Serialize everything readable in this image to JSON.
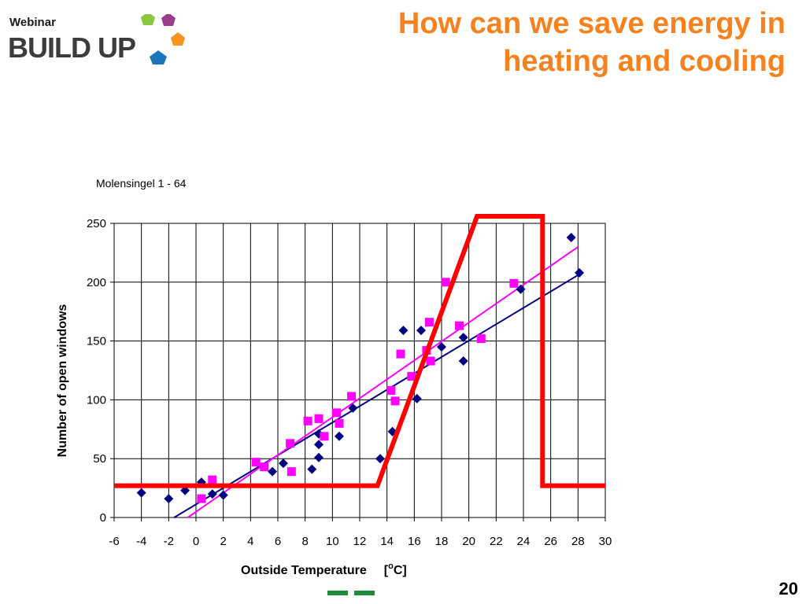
{
  "header": {
    "webinar_label": "Webinar",
    "brand": "BUILD UP",
    "title_line1": "How can we save energy in",
    "title_line2": "heating and cooling"
  },
  "footer": {
    "page_number": "20"
  },
  "colors": {
    "title": "#f5821f",
    "series_a": "#000080",
    "series_b": "#ff00ff",
    "overlay": "#ff0000",
    "logo_green": "#8dc63f",
    "logo_purple": "#9b3d8c",
    "logo_orange": "#f7941d",
    "logo_blue": "#1b75bc"
  },
  "chart_data": {
    "type": "scatter",
    "title": "Molensingel 1 - 64",
    "xlabel": "Outside Temperature",
    "xunit_prefix": "[",
    "xunit_sup": "o",
    "xunit_suffix": "C]",
    "ylabel": "Number of open windows",
    "xlim": [
      -6,
      30
    ],
    "ylim": [
      0,
      250
    ],
    "xticks": [
      -6,
      -4,
      -2,
      0,
      2,
      4,
      6,
      8,
      10,
      12,
      14,
      16,
      18,
      20,
      22,
      24,
      26,
      28,
      30
    ],
    "yticks": [
      0,
      50,
      100,
      150,
      200,
      250
    ],
    "grid": true,
    "series": [
      {
        "marker": "diamond",
        "color": "#000080",
        "points": [
          [
            -4,
            21
          ],
          [
            -2,
            16
          ],
          [
            -0.8,
            23
          ],
          [
            0.4,
            30
          ],
          [
            1.2,
            20
          ],
          [
            2,
            19
          ],
          [
            5.6,
            39
          ],
          [
            6.4,
            46
          ],
          [
            8.5,
            41
          ],
          [
            9,
            51
          ],
          [
            9,
            62
          ],
          [
            9,
            71
          ],
          [
            10.5,
            69
          ],
          [
            11.5,
            93
          ],
          [
            13.5,
            50
          ],
          [
            14.4,
            73
          ],
          [
            15.2,
            159
          ],
          [
            16.2,
            101
          ],
          [
            16.5,
            159
          ],
          [
            18,
            145
          ],
          [
            19.6,
            133
          ],
          [
            19.6,
            153
          ],
          [
            23.8,
            194
          ],
          [
            27.5,
            238
          ],
          [
            28.1,
            208
          ]
        ]
      },
      {
        "marker": "square",
        "color": "#ff00ff",
        "points": [
          [
            0.4,
            16
          ],
          [
            1.2,
            32
          ],
          [
            4.4,
            47
          ],
          [
            5,
            43
          ],
          [
            6.9,
            63
          ],
          [
            7,
            39
          ],
          [
            8.2,
            82
          ],
          [
            9,
            84
          ],
          [
            9.4,
            69
          ],
          [
            10.3,
            89
          ],
          [
            10.5,
            80
          ],
          [
            11.4,
            103
          ],
          [
            14.3,
            108
          ],
          [
            14.6,
            99
          ],
          [
            15,
            139
          ],
          [
            15.8,
            120
          ],
          [
            16.9,
            142
          ],
          [
            17.1,
            166
          ],
          [
            17.2,
            133
          ],
          [
            18.3,
            200
          ],
          [
            19.3,
            163
          ],
          [
            20.9,
            152
          ],
          [
            23.3,
            199
          ]
        ]
      }
    ],
    "trendlines": [
      {
        "color": "#000080",
        "from": [
          -1.6,
          0
        ],
        "to": [
          28,
          206
        ]
      },
      {
        "color": "#ff00ff",
        "from": [
          -0.6,
          0
        ],
        "to": [
          28,
          230
        ]
      }
    ],
    "overlay": {
      "color": "#ff0000",
      "points": [
        [
          -6,
          27
        ],
        [
          13.3,
          27
        ],
        [
          20.6,
          256
        ],
        [
          25.4,
          256
        ],
        [
          25.4,
          27
        ],
        [
          30,
          27
        ]
      ]
    }
  }
}
